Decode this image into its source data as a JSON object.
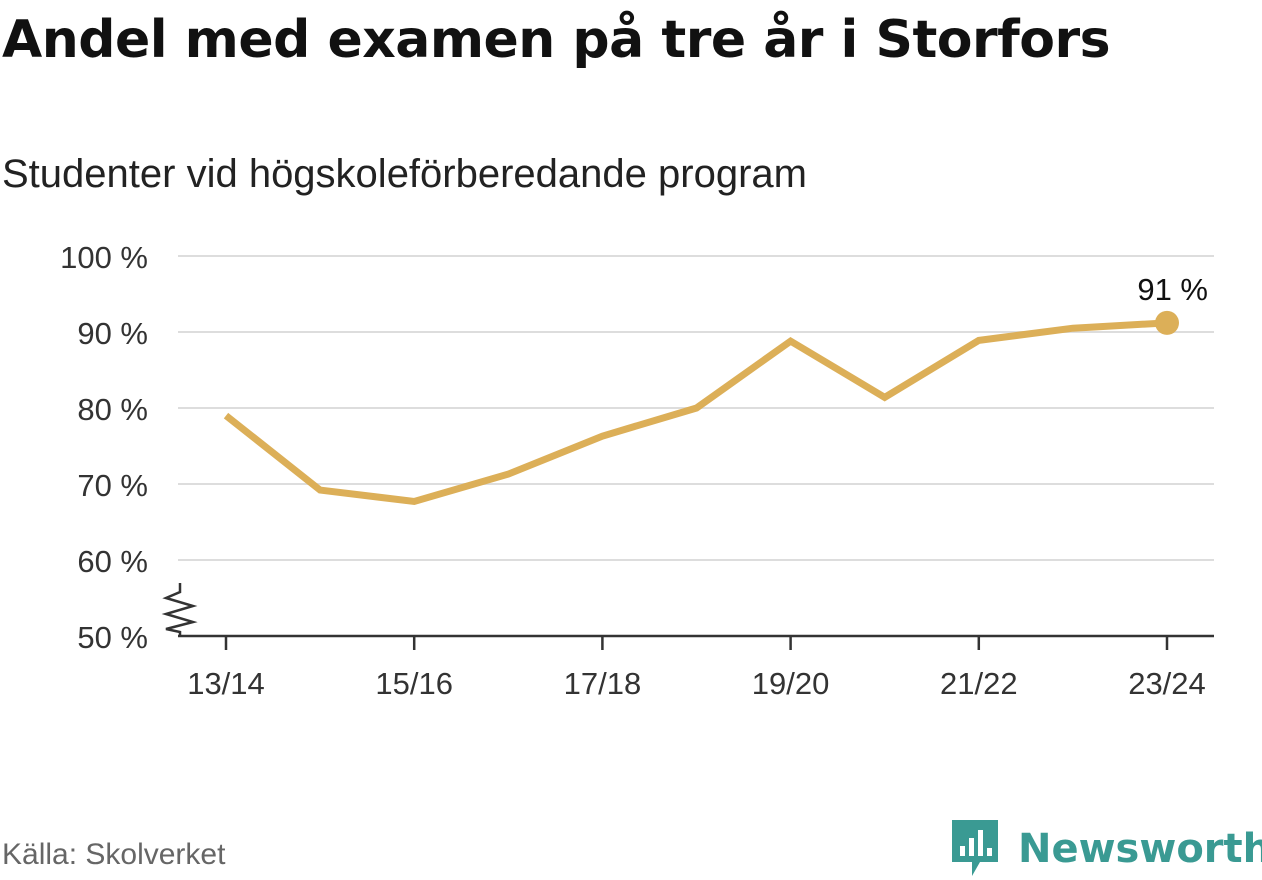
{
  "header": {
    "title": "Andel med examen på tre år i Storfors",
    "subtitle": "Studenter vid högskoleförberedande program"
  },
  "footer": {
    "source": "Källa: Skolverket",
    "brand": "Newsworthy",
    "brand_icon": "bar-chart-speech-bubble-icon"
  },
  "colors": {
    "line": "#dcaf58",
    "grid": "#dddddd",
    "axis": "#333333",
    "text": "#333333",
    "brand": "#3a9a93"
  },
  "chart_data": {
    "type": "line",
    "x": [
      "13/14",
      "14/15",
      "15/16",
      "16/17",
      "17/18",
      "18/19",
      "19/20",
      "20/21",
      "21/22",
      "22/23",
      "23/24"
    ],
    "series": [
      {
        "values": [
          79.0,
          69.2,
          67.7,
          71.3,
          76.3,
          80.0,
          88.8,
          81.4,
          88.9,
          90.5,
          91.2
        ]
      }
    ],
    "xticks": [
      "13/14",
      "15/16",
      "17/18",
      "19/20",
      "21/22",
      "23/24"
    ],
    "yticks": [
      "100 %",
      "90 %",
      "80 %",
      "70 %",
      "60 %",
      "50 %"
    ],
    "ytick_values": [
      100,
      90,
      80,
      70,
      60,
      50
    ],
    "ylim": [
      50,
      100
    ],
    "axis_break": true,
    "grid": true,
    "end_label": "91 %"
  }
}
